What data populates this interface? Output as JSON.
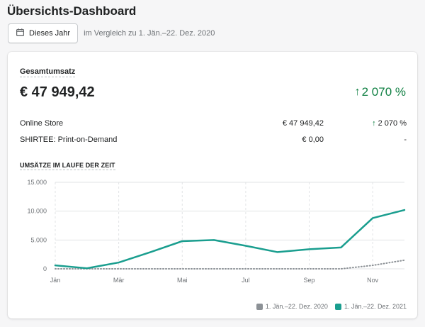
{
  "header": {
    "title": "Übersichts-Dashboard",
    "date_button_label": "Dieses Jahr",
    "compare_text": "im Vergleich zu 1. Jän.–22. Dez. 2020"
  },
  "summary": {
    "title": "Gesamtumsatz",
    "total": "€ 47 949,42",
    "change": "2 070 %",
    "rows": [
      {
        "name": "Online Store",
        "value": "€ 47 949,42",
        "change": "2 070 %",
        "up": true
      },
      {
        "name": "SHIRTEE: Print-on-Demand",
        "value": "€ 0,00",
        "change": "-",
        "up": false
      }
    ]
  },
  "colors": {
    "current": "#1a9e8f",
    "previous": "#8c9196",
    "positive": "#108043"
  },
  "chart_data": {
    "type": "line",
    "title": "UMSÄTZE IM LAUFE DER ZEIT",
    "x_tick_labels": [
      "Jän",
      "Mär",
      "Mai",
      "Jul",
      "Sep",
      "Nov"
    ],
    "y_tick_labels": [
      "15.000",
      "10.000",
      "5.000",
      "0"
    ],
    "ylim": [
      0,
      15000
    ],
    "x": [
      "Jan 1",
      "Feb 1",
      "Mar 1",
      "Apr 1",
      "May 1",
      "Jun 1",
      "Jul 1",
      "Aug 1",
      "Sep 1",
      "Oct 1",
      "Nov 1",
      "Dec 1"
    ],
    "series": [
      {
        "name": "1. Jän.–22. Dez. 2020",
        "style": "dotted",
        "values": [
          0,
          0,
          0,
          0,
          0,
          0,
          0,
          0,
          0,
          0,
          600,
          1500
        ]
      },
      {
        "name": "1. Jän.–22. Dez. 2021",
        "style": "solid",
        "values": [
          600,
          100,
          1100,
          2900,
          4800,
          5000,
          4000,
          2900,
          3400,
          3700,
          8800,
          10200
        ]
      }
    ],
    "grid": true,
    "legend": "bottom-right"
  }
}
